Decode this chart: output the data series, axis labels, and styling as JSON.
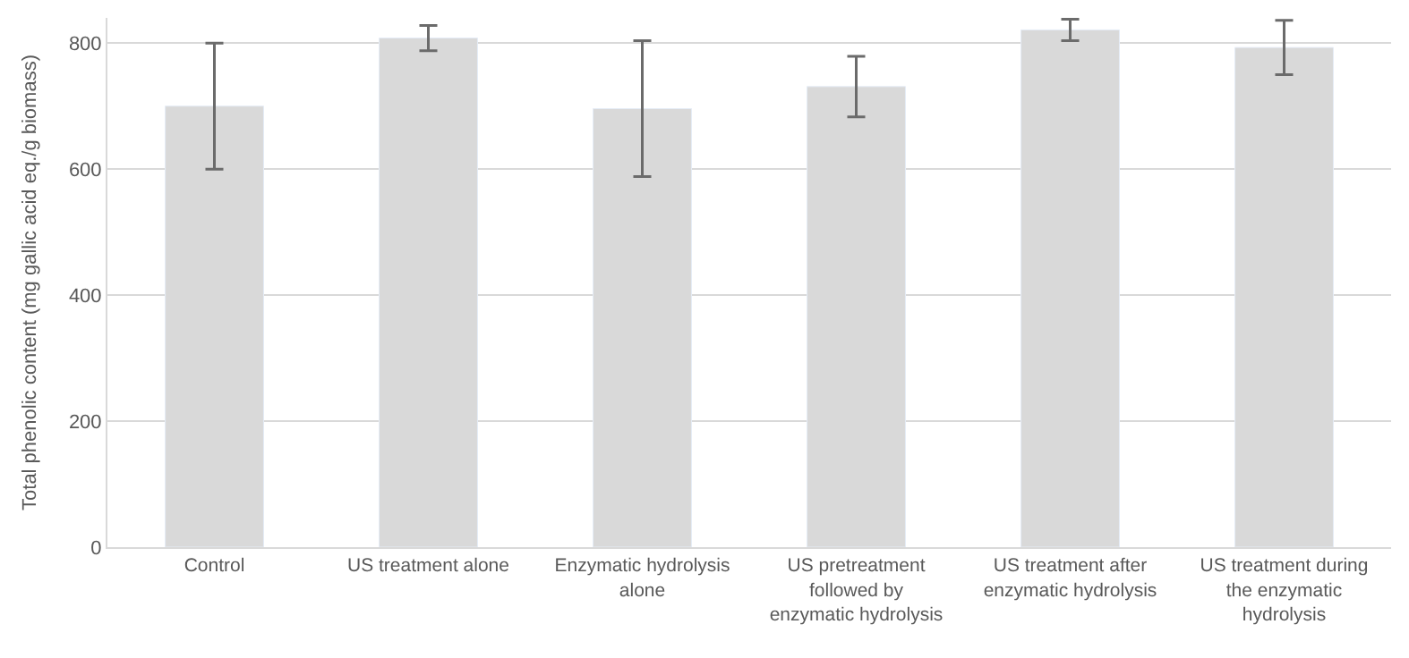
{
  "chart_data": {
    "type": "bar",
    "ylabel": "Total phenolic content (mg gallic acid eq./g biomass)",
    "categories": [
      "Control",
      "US treatment alone",
      "Enzymatic hydrolysis alone",
      "US pretreatment followed by enzymatic hydrolysis",
      "US treatment after enzymatic hydrolysis",
      "US treatment during the enzymatic hydrolysis"
    ],
    "values": [
      700,
      808,
      696,
      731,
      821,
      793
    ],
    "errors": [
      100,
      20,
      108,
      48,
      17,
      43
    ],
    "color": "#d9d9d9",
    "ylim": [
      0,
      840
    ],
    "yticks": [
      0,
      200,
      400,
      600,
      800
    ],
    "grid": "y"
  }
}
